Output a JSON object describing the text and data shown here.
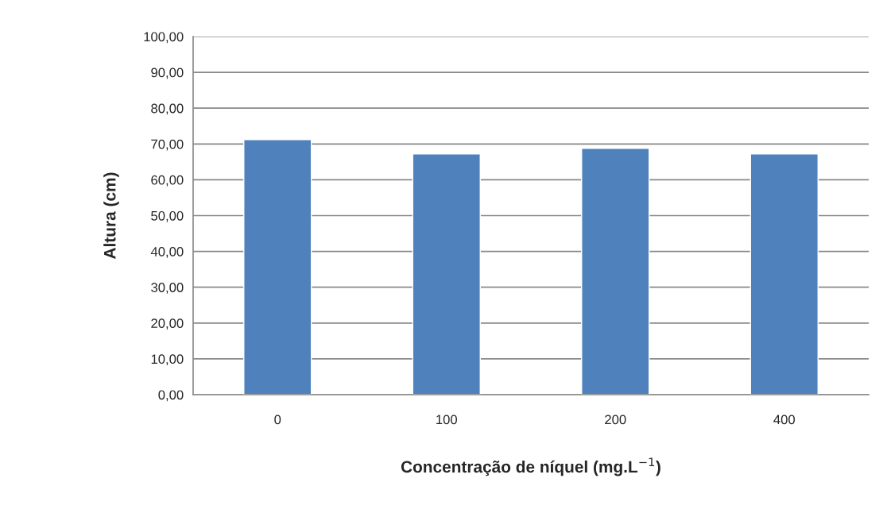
{
  "chart_data": {
    "type": "bar",
    "xlabel": "Concentração de níquel (mg.L$^{−1}$)",
    "ylabel": "Altura (cm)",
    "categories": [
      "0",
      "100",
      "200",
      "400"
    ],
    "values": [
      71.2,
      67.2,
      68.8,
      67.2
    ],
    "color": "#4f81bd",
    "ylim": [
      0,
      100
    ],
    "yticks": [
      {
        "value": 0,
        "label": "0,00"
      },
      {
        "value": 10,
        "label": "10,00"
      },
      {
        "value": 20,
        "label": "20,00"
      },
      {
        "value": 30,
        "label": "30,00"
      },
      {
        "value": 40,
        "label": "40,00"
      },
      {
        "value": 50,
        "label": "50,00"
      },
      {
        "value": 60,
        "label": "60,00"
      },
      {
        "value": 70,
        "label": "70,00"
      },
      {
        "value": 80,
        "label": "80,00"
      },
      {
        "value": 90,
        "label": "90,00"
      },
      {
        "value": 100,
        "label": "100,00"
      }
    ],
    "grid": "y",
    "legend": false
  }
}
